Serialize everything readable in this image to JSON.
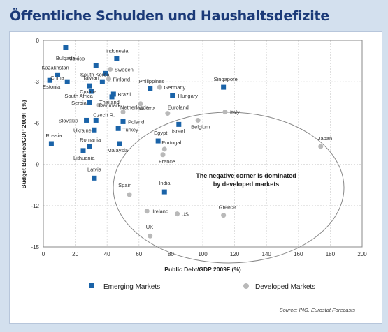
{
  "title": "Öffentliche Schulden und Haushaltsdefizite",
  "annotation": [
    "The negative corner is dominated",
    "by developed markets"
  ],
  "source": "Source: ING, Eurostat Forecasts",
  "colors": {
    "emerging": "#1a63a8",
    "developed": "#b9b9b9",
    "title": "#1b3a78"
  },
  "chart_data": {
    "type": "scatter",
    "xlabel": "Public Debt/GDP 2009F (%)",
    "ylabel": "Budget Balance/GDP 2009F (%)",
    "xlim": [
      0,
      200
    ],
    "ylim": [
      -15,
      0
    ],
    "xticks": [
      0,
      20,
      40,
      60,
      80,
      100,
      120,
      140,
      160,
      180,
      200
    ],
    "yticks": [
      0,
      -3,
      -6,
      -9,
      -12,
      -15
    ],
    "grid": true,
    "legend_position": "bottom",
    "series": [
      {
        "name": "Emerging Markets",
        "marker": "square",
        "points": [
          {
            "label": "Bulgaria",
            "x": 14,
            "y": -0.5
          },
          {
            "label": "Indonesia",
            "x": 46,
            "y": -1.3
          },
          {
            "label": "Mexico",
            "x": 33,
            "y": -1.8
          },
          {
            "label": "Kazakhstan",
            "x": 9,
            "y": -2.5
          },
          {
            "label": "South Korea",
            "x": 39,
            "y": -2.4
          },
          {
            "label": "China",
            "x": 15,
            "y": -3.0
          },
          {
            "label": "Taiwan",
            "x": 37,
            "y": -3.0
          },
          {
            "label": "Estonia",
            "x": 4,
            "y": -2.9
          },
          {
            "label": "Croatia",
            "x": 29,
            "y": -3.3
          },
          {
            "label": "Brazil",
            "x": 44,
            "y": -3.9
          },
          {
            "label": "South Africa",
            "x": 30,
            "y": -3.7
          },
          {
            "label": "Serbia",
            "x": 29,
            "y": -4.5
          },
          {
            "label": "Thailand",
            "x": 43,
            "y": -4.1
          },
          {
            "label": "Philippines",
            "x": 67,
            "y": -3.5
          },
          {
            "label": "Hungary",
            "x": 81,
            "y": -4.0
          },
          {
            "label": "Singapore",
            "x": 113,
            "y": -3.4
          },
          {
            "label": "Slovakia",
            "x": 27,
            "y": -5.8
          },
          {
            "label": "Czech R.",
            "x": 33,
            "y": -5.8
          },
          {
            "label": "Ukraine",
            "x": 32,
            "y": -6.5
          },
          {
            "label": "Poland",
            "x": 50,
            "y": -5.9
          },
          {
            "label": "Turkey",
            "x": 47,
            "y": -6.4
          },
          {
            "label": "Russia",
            "x": 5,
            "y": -7.5
          },
          {
            "label": "Romania",
            "x": 29,
            "y": -7.7
          },
          {
            "label": "Lithuania",
            "x": 25,
            "y": -8.0
          },
          {
            "label": "Egypt",
            "x": 72,
            "y": -7.3
          },
          {
            "label": "Israel",
            "x": 85,
            "y": -6.1
          },
          {
            "label": "Malaysia",
            "x": 48,
            "y": -7.5
          },
          {
            "label": "Latvia",
            "x": 32,
            "y": -10.0
          },
          {
            "label": "India",
            "x": 76,
            "y": -11.0
          }
        ]
      },
      {
        "name": "Developed Markets",
        "marker": "circle",
        "points": [
          {
            "label": "Sweden",
            "x": 42,
            "y": -2.1
          },
          {
            "label": "Finland",
            "x": 41,
            "y": -2.8
          },
          {
            "label": "Denmark",
            "x": 35,
            "y": -4.7
          },
          {
            "label": "Netherlands",
            "x": 50,
            "y": -5.2
          },
          {
            "label": "Austria",
            "x": 61,
            "y": -4.6
          },
          {
            "label": "Germany",
            "x": 73,
            "y": -3.4
          },
          {
            "label": "Euroland",
            "x": 78,
            "y": -5.3
          },
          {
            "label": "Italy",
            "x": 114,
            "y": -5.2
          },
          {
            "label": "Belgium",
            "x": 97,
            "y": -5.8
          },
          {
            "label": "Portugal",
            "x": 76,
            "y": -7.9
          },
          {
            "label": "France",
            "x": 75,
            "y": -8.3
          },
          {
            "label": "Japan",
            "x": 174,
            "y": -7.7
          },
          {
            "label": "Spain",
            "x": 54,
            "y": -11.2
          },
          {
            "label": "Ireland",
            "x": 65,
            "y": -12.4
          },
          {
            "label": "US",
            "x": 84,
            "y": -12.6
          },
          {
            "label": "Greece",
            "x": 113,
            "y": -12.7
          },
          {
            "label": "UK",
            "x": 67,
            "y": -14.2
          }
        ]
      }
    ]
  }
}
